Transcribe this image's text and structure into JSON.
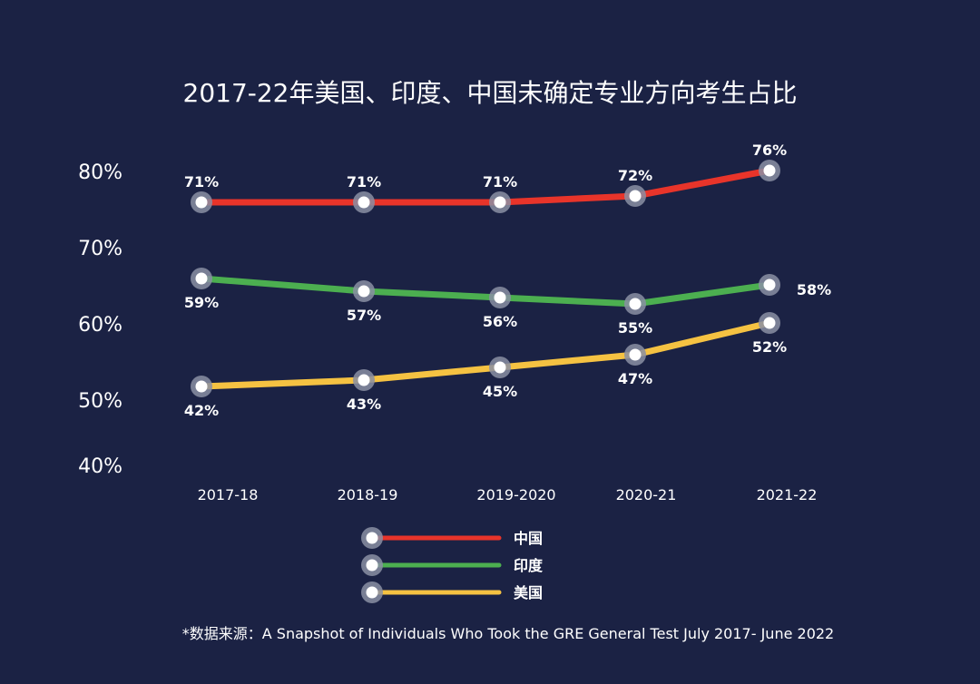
{
  "chart_data": {
    "type": "line",
    "title": "2017-22年美国、印度、中国未确定专业方向考生占比",
    "categories": [
      "2017-18",
      "2018-19",
      "2019-2020",
      "2020-21",
      "2021-22"
    ],
    "y_tick_labels": [
      "80%",
      "70%",
      "60%",
      "50%",
      "40%"
    ],
    "grid": false,
    "legend_position": "bottom",
    "series": [
      {
        "name": "中国",
        "color": "#e8342a",
        "values": [
          71,
          71,
          71,
          72,
          76
        ],
        "labels": [
          "71%",
          "71%",
          "71%",
          "72%",
          "76%"
        ]
      },
      {
        "name": "印度",
        "color": "#4caf50",
        "values": [
          59,
          57,
          56,
          55,
          58
        ],
        "labels": [
          "59%",
          "57%",
          "56%",
          "55%",
          "58%"
        ]
      },
      {
        "name": "美国",
        "color": "#f5c242",
        "values": [
          42,
          43,
          45,
          47,
          52
        ],
        "labels": [
          "42%",
          "43%",
          "45%",
          "47%",
          "52%"
        ]
      }
    ],
    "source": "*数据来源：A Snapshot of Individuals Who Took the GRE General Test July 2017- June 2022"
  }
}
